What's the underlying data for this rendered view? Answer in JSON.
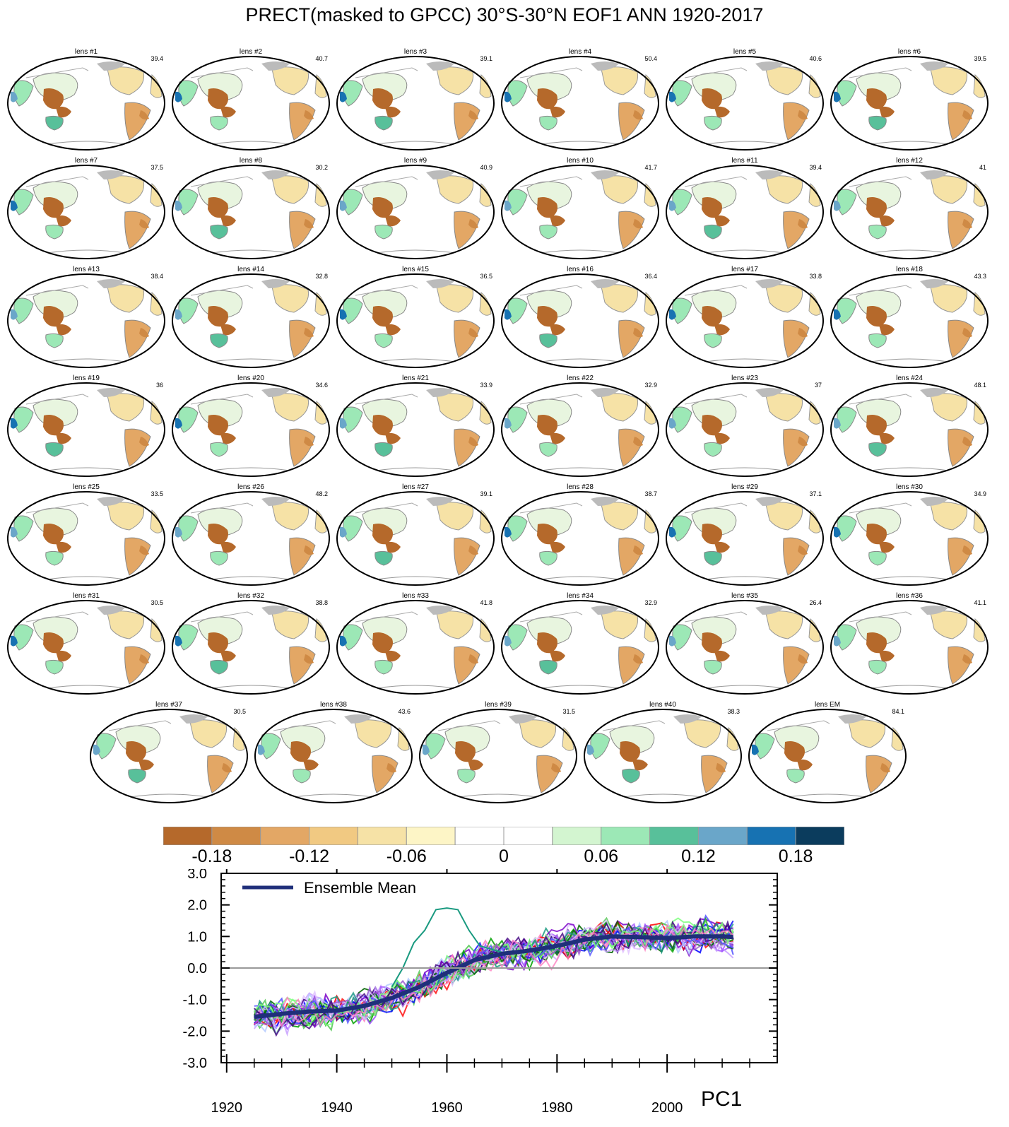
{
  "title": "PRECT(masked to GPCC) 30°S-30°N EOF1 ANN 1920-2017",
  "maps": [
    {
      "label": "lens #1",
      "pct": "39.4"
    },
    {
      "label": "lens #2",
      "pct": "40.7"
    },
    {
      "label": "lens #3",
      "pct": "39.1"
    },
    {
      "label": "lens #4",
      "pct": "50.4"
    },
    {
      "label": "lens #5",
      "pct": "40.6"
    },
    {
      "label": "lens #6",
      "pct": "39.5"
    },
    {
      "label": "lens #7",
      "pct": "37.5"
    },
    {
      "label": "lens #8",
      "pct": "30.2"
    },
    {
      "label": "lens #9",
      "pct": "40.9"
    },
    {
      "label": "lens #10",
      "pct": "41.7"
    },
    {
      "label": "lens #11",
      "pct": "39.4"
    },
    {
      "label": "lens #12",
      "pct": "41"
    },
    {
      "label": "lens #13",
      "pct": "38.4"
    },
    {
      "label": "lens #14",
      "pct": "32.8"
    },
    {
      "label": "lens #15",
      "pct": "36.5"
    },
    {
      "label": "lens #16",
      "pct": "36.4"
    },
    {
      "label": "lens #17",
      "pct": "33.8"
    },
    {
      "label": "lens #18",
      "pct": "43.3"
    },
    {
      "label": "lens #19",
      "pct": "36"
    },
    {
      "label": "lens #20",
      "pct": "34.6"
    },
    {
      "label": "lens #21",
      "pct": "33.9"
    },
    {
      "label": "lens #22",
      "pct": "32.9"
    },
    {
      "label": "lens #23",
      "pct": "37"
    },
    {
      "label": "lens #24",
      "pct": "48.1"
    },
    {
      "label": "lens #25",
      "pct": "33.5"
    },
    {
      "label": "lens #26",
      "pct": "48.2"
    },
    {
      "label": "lens #27",
      "pct": "39.1"
    },
    {
      "label": "lens #28",
      "pct": "38.7"
    },
    {
      "label": "lens #29",
      "pct": "37.1"
    },
    {
      "label": "lens #30",
      "pct": "34.9"
    },
    {
      "label": "lens #31",
      "pct": "30.5"
    },
    {
      "label": "lens #32",
      "pct": "38.8"
    },
    {
      "label": "lens #33",
      "pct": "41.8"
    },
    {
      "label": "lens #34",
      "pct": "32.9"
    },
    {
      "label": "lens #35",
      "pct": "26.4"
    },
    {
      "label": "lens #36",
      "pct": "41.1"
    },
    {
      "label": "lens #37",
      "pct": "30.5"
    },
    {
      "label": "lens #38",
      "pct": "43.6"
    },
    {
      "label": "lens #39",
      "pct": "31.5"
    },
    {
      "label": "lens #40",
      "pct": "38.3"
    },
    {
      "label": "lens EM",
      "pct": "84.1"
    }
  ],
  "colorbar": {
    "colors": [
      "#b5692b",
      "#cf8a45",
      "#e3a765",
      "#f1c982",
      "#f6e2a6",
      "#fdf5c6",
      "#ffffff",
      "#ffffff",
      "#d3f5d0",
      "#9ce8b6",
      "#58c09a",
      "#6aa6c9",
      "#1772b2",
      "#0b3c5d"
    ],
    "labels": [
      "-0.18",
      "-0.12",
      "-0.06",
      "0",
      "0.06",
      "0.12",
      "0.18"
    ]
  },
  "chart_data": {
    "type": "line",
    "title": "PC1",
    "legend_label": "Ensemble Mean",
    "ylim": [
      -3.0,
      3.0
    ],
    "yticks": [
      "3.0",
      "2.0",
      "1.0",
      "0.0",
      "-1.0",
      "-2.0",
      "-3.0"
    ],
    "ytick_values": [
      3,
      2,
      1,
      0,
      -1,
      -2,
      -3
    ],
    "xlim": [
      1919,
      2020
    ],
    "xticks": [
      "1920",
      "1940",
      "1960",
      "1980",
      "2000"
    ],
    "xtick_values": [
      1920,
      1940,
      1960,
      1980,
      2000
    ],
    "x_start": 1925,
    "x_end": 2012,
    "ensemble_mean": {
      "x": [
        1925,
        1930,
        1935,
        1940,
        1945,
        1950,
        1955,
        1960,
        1965,
        1970,
        1975,
        1980,
        1985,
        1990,
        1995,
        2000,
        2005,
        2010,
        2012
      ],
      "y": [
        -1.55,
        -1.45,
        -1.38,
        -1.35,
        -1.2,
        -0.95,
        -0.6,
        -0.15,
        0.25,
        0.45,
        0.55,
        0.7,
        0.9,
        1.0,
        0.98,
        0.95,
        1.0,
        1.0,
        0.98
      ]
    },
    "member_colors": [
      "#0000ff",
      "#ff0000",
      "#00a000",
      "#7a00c8",
      "#a050ff",
      "#c8a0ff",
      "#b0c8ff",
      "#50c850",
      "#006400",
      "#1a9a80",
      "#9b59d0",
      "#e0c0ff",
      "#5050ff",
      "#80ff80",
      "#400080",
      "#ff80c0"
    ],
    "spike_series": {
      "x": [
        1950,
        1952,
        1954,
        1956,
        1958,
        1960,
        1962,
        1964,
        1966,
        1968,
        1970
      ],
      "y": [
        -0.6,
        0.0,
        0.8,
        1.2,
        1.85,
        1.9,
        1.85,
        1.2,
        0.7,
        0.6,
        0.5
      ]
    }
  }
}
